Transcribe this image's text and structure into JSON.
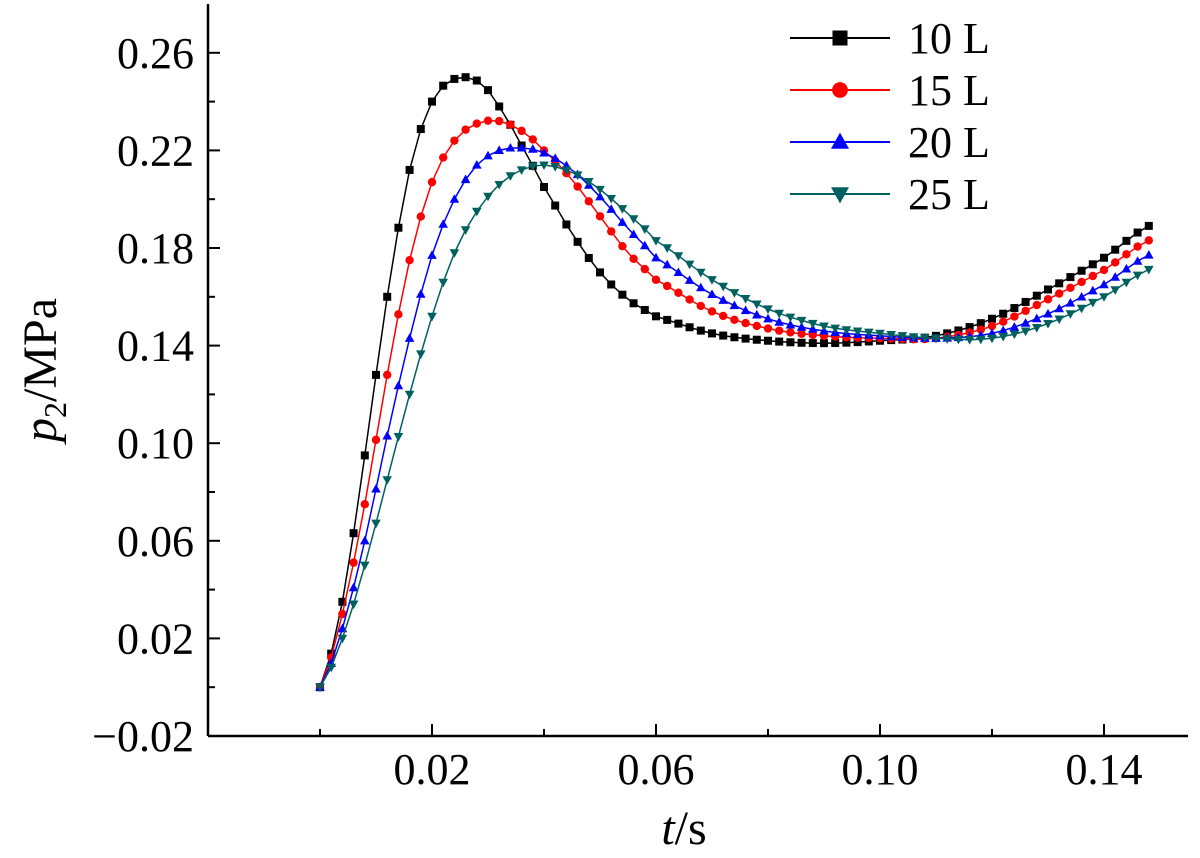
{
  "chart_data": {
    "type": "line",
    "title": "",
    "xlabel": {
      "var": "t",
      "unit": "s"
    },
    "ylabel": {
      "var": "p",
      "sub": "2",
      "unit": "MPa"
    },
    "xlim": [
      -0.02,
      0.155
    ],
    "ylim": [
      -0.02,
      0.28
    ],
    "xticks": [
      {
        "value": 0.02,
        "label": "0.02"
      },
      {
        "value": 0.06,
        "label": "0.06"
      },
      {
        "value": 0.1,
        "label": "0.10"
      },
      {
        "value": 0.14,
        "label": "0.14"
      }
    ],
    "yticks": [
      {
        "value": -0.02,
        "label": "−0.02"
      },
      {
        "value": 0.02,
        "label": "0.02"
      },
      {
        "value": 0.06,
        "label": "0.06"
      },
      {
        "value": 0.1,
        "label": "0.10"
      },
      {
        "value": 0.14,
        "label": "0.14"
      },
      {
        "value": 0.18,
        "label": "0.18"
      },
      {
        "value": 0.22,
        "label": "0.22"
      },
      {
        "value": 0.26,
        "label": "0.26"
      }
    ],
    "legend_position": "top-right",
    "series": [
      {
        "name": "10 L",
        "color": "#000000",
        "marker": "square",
        "keypoints": [
          [
            0,
            0
          ],
          [
            0.004,
            0.035
          ],
          [
            0.008,
            0.095
          ],
          [
            0.012,
            0.16
          ],
          [
            0.016,
            0.212
          ],
          [
            0.02,
            0.24
          ],
          [
            0.023,
            0.248
          ],
          [
            0.026,
            0.25
          ],
          [
            0.029,
            0.247
          ],
          [
            0.032,
            0.238
          ],
          [
            0.036,
            0.222
          ],
          [
            0.04,
            0.205
          ],
          [
            0.045,
            0.186
          ],
          [
            0.05,
            0.17
          ],
          [
            0.055,
            0.159
          ],
          [
            0.06,
            0.152
          ],
          [
            0.07,
            0.145
          ],
          [
            0.08,
            0.142
          ],
          [
            0.09,
            0.141
          ],
          [
            0.1,
            0.142
          ],
          [
            0.11,
            0.144
          ],
          [
            0.12,
            0.151
          ],
          [
            0.13,
            0.163
          ],
          [
            0.14,
            0.176
          ],
          [
            0.149,
            0.19
          ]
        ]
      },
      {
        "name": "15 L",
        "color": "#ff0000",
        "marker": "circle",
        "keypoints": [
          [
            0,
            0
          ],
          [
            0.004,
            0.03
          ],
          [
            0.008,
            0.075
          ],
          [
            0.012,
            0.128
          ],
          [
            0.016,
            0.175
          ],
          [
            0.02,
            0.207
          ],
          [
            0.024,
            0.224
          ],
          [
            0.028,
            0.231
          ],
          [
            0.032,
            0.232
          ],
          [
            0.036,
            0.228
          ],
          [
            0.04,
            0.22
          ],
          [
            0.045,
            0.208
          ],
          [
            0.05,
            0.193
          ],
          [
            0.055,
            0.178
          ],
          [
            0.06,
            0.167
          ],
          [
            0.07,
            0.154
          ],
          [
            0.08,
            0.147
          ],
          [
            0.09,
            0.144
          ],
          [
            0.1,
            0.143
          ],
          [
            0.11,
            0.143
          ],
          [
            0.12,
            0.148
          ],
          [
            0.13,
            0.159
          ],
          [
            0.14,
            0.171
          ],
          [
            0.149,
            0.184
          ]
        ]
      },
      {
        "name": "20 L",
        "color": "#0000ff",
        "marker": "triangle-up",
        "keypoints": [
          [
            0,
            0
          ],
          [
            0.004,
            0.024
          ],
          [
            0.008,
            0.06
          ],
          [
            0.012,
            0.103
          ],
          [
            0.016,
            0.143
          ],
          [
            0.02,
            0.177
          ],
          [
            0.024,
            0.2
          ],
          [
            0.028,
            0.214
          ],
          [
            0.032,
            0.22
          ],
          [
            0.036,
            0.221
          ],
          [
            0.04,
            0.219
          ],
          [
            0.045,
            0.212
          ],
          [
            0.05,
            0.201
          ],
          [
            0.055,
            0.188
          ],
          [
            0.06,
            0.176
          ],
          [
            0.07,
            0.161
          ],
          [
            0.08,
            0.151
          ],
          [
            0.09,
            0.146
          ],
          [
            0.1,
            0.144
          ],
          [
            0.11,
            0.143
          ],
          [
            0.12,
            0.145
          ],
          [
            0.13,
            0.153
          ],
          [
            0.14,
            0.165
          ],
          [
            0.149,
            0.178
          ]
        ]
      },
      {
        "name": "25 L",
        "color": "#006060",
        "marker": "triangle-down",
        "keypoints": [
          [
            0,
            0
          ],
          [
            0.004,
            0.02
          ],
          [
            0.008,
            0.05
          ],
          [
            0.012,
            0.085
          ],
          [
            0.016,
            0.12
          ],
          [
            0.02,
            0.152
          ],
          [
            0.024,
            0.178
          ],
          [
            0.028,
            0.195
          ],
          [
            0.032,
            0.206
          ],
          [
            0.036,
            0.212
          ],
          [
            0.04,
            0.214
          ],
          [
            0.045,
            0.211
          ],
          [
            0.05,
            0.204
          ],
          [
            0.055,
            0.194
          ],
          [
            0.06,
            0.183
          ],
          [
            0.07,
            0.167
          ],
          [
            0.08,
            0.155
          ],
          [
            0.09,
            0.148
          ],
          [
            0.1,
            0.145
          ],
          [
            0.11,
            0.143
          ],
          [
            0.12,
            0.143
          ],
          [
            0.13,
            0.149
          ],
          [
            0.14,
            0.16
          ],
          [
            0.149,
            0.172
          ]
        ]
      }
    ]
  }
}
